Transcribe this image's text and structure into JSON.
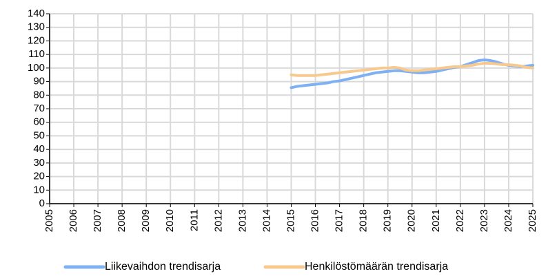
{
  "chart_data": {
    "type": "line",
    "x": [
      2015,
      2015.25,
      2015.5,
      2015.75,
      2016,
      2016.25,
      2016.5,
      2016.75,
      2017,
      2017.25,
      2017.5,
      2017.75,
      2018,
      2018.25,
      2018.5,
      2018.75,
      2019,
      2019.25,
      2019.5,
      2019.75,
      2020,
      2020.25,
      2020.5,
      2020.75,
      2021,
      2021.25,
      2021.5,
      2021.75,
      2022,
      2022.25,
      2022.5,
      2022.75,
      2023,
      2023.25,
      2023.5,
      2023.75,
      2024,
      2024.25,
      2024.5,
      2024.75,
      2025
    ],
    "series": [
      {
        "name": "Liikevaihdon trendisarja",
        "color": "#7fb0f2",
        "values": [
          85.5,
          86.5,
          87,
          87.5,
          88,
          88.5,
          89,
          90,
          90.5,
          91.5,
          92.5,
          93.5,
          94.5,
          95.5,
          96.5,
          97,
          97.5,
          98,
          98,
          97.5,
          97,
          96.5,
          96.5,
          97,
          97.5,
          98.5,
          99.5,
          100.5,
          101,
          102.5,
          104,
          105.5,
          106,
          105.5,
          104.5,
          103,
          102,
          101.5,
          101,
          101.5,
          102
        ]
      },
      {
        "name": "Henkilöstömäärän trendisarja",
        "color": "#f8c98e",
        "values": [
          95,
          94.5,
          94.5,
          94.5,
          94.5,
          95,
          95.5,
          96,
          96.5,
          97,
          97.5,
          98,
          98.5,
          99,
          99.5,
          100,
          100,
          100.5,
          100,
          98.5,
          98,
          98,
          98.5,
          99,
          99.5,
          100,
          100.5,
          101,
          101,
          101.5,
          102,
          103,
          103.5,
          103.5,
          103,
          102.5,
          102.5,
          102,
          101.5,
          100.5,
          100
        ]
      }
    ],
    "xlim": [
      2005,
      2025
    ],
    "xticks": [
      2005,
      2006,
      2007,
      2008,
      2009,
      2010,
      2011,
      2012,
      2013,
      2014,
      2015,
      2016,
      2017,
      2018,
      2019,
      2020,
      2021,
      2022,
      2023,
      2024,
      2025
    ],
    "ylim": [
      0,
      140
    ],
    "yticks": [
      0,
      10,
      20,
      30,
      40,
      50,
      60,
      70,
      80,
      90,
      100,
      110,
      120,
      130,
      140
    ],
    "grid": true,
    "legend": "bottom"
  }
}
